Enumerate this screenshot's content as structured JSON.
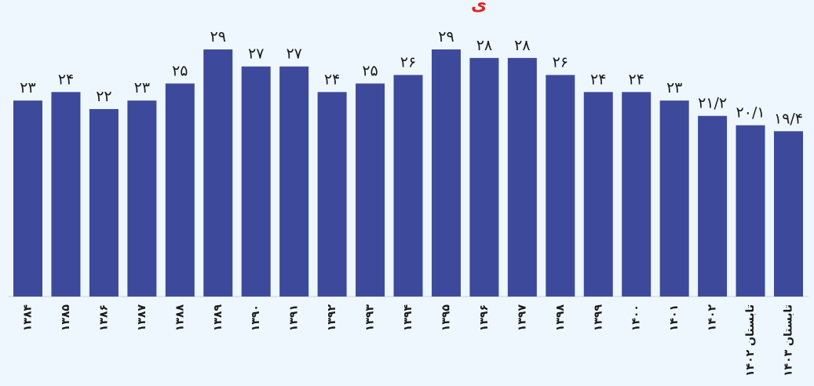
{
  "chart_data": {
    "type": "bar",
    "categories": [
      "۱۳۸۴",
      "۱۳۸۵",
      "۱۳۸۶",
      "۱۳۸۷",
      "۱۳۸۸",
      "۱۳۸۹",
      "۱۳۹۰",
      "۱۳۹۱",
      "۱۳۹۲",
      "۱۳۹۳",
      "۱۳۹۴",
      "۱۳۹۵",
      "۱۳۹۶",
      "۱۳۹۷",
      "۱۳۹۸",
      "۱۳۹۹",
      "۱۴۰۰",
      "۱۴۰۱",
      "۱۴۰۲",
      "تابستان ۱۴۰۲",
      "تابستان ۱۴۰۳"
    ],
    "values": [
      23,
      24,
      22,
      23,
      25,
      29,
      27,
      27,
      24,
      25,
      26,
      29,
      28,
      28,
      26,
      24,
      24,
      23,
      21.2,
      20.1,
      19.4
    ],
    "value_labels": [
      "۲۳",
      "۲۴",
      "۲۲",
      "۲۳",
      "۲۵",
      "۲۹",
      "۲۷",
      "۲۷",
      "۲۴",
      "۲۵",
      "۲۶",
      "۲۹",
      "۲۸",
      "۲۸",
      "۲۶",
      "۲۴",
      "۲۴",
      "۲۳",
      "۲۱/۲",
      "۲۰/۱",
      "۱۹/۴"
    ],
    "ylim": [
      0,
      30
    ],
    "bar_color": "#3d4a9b",
    "label_color": "#1a1a1a",
    "background": "#eef7fd",
    "grid": false,
    "title": "",
    "xlabel": "",
    "ylabel": ""
  },
  "title_fragment": "ی"
}
